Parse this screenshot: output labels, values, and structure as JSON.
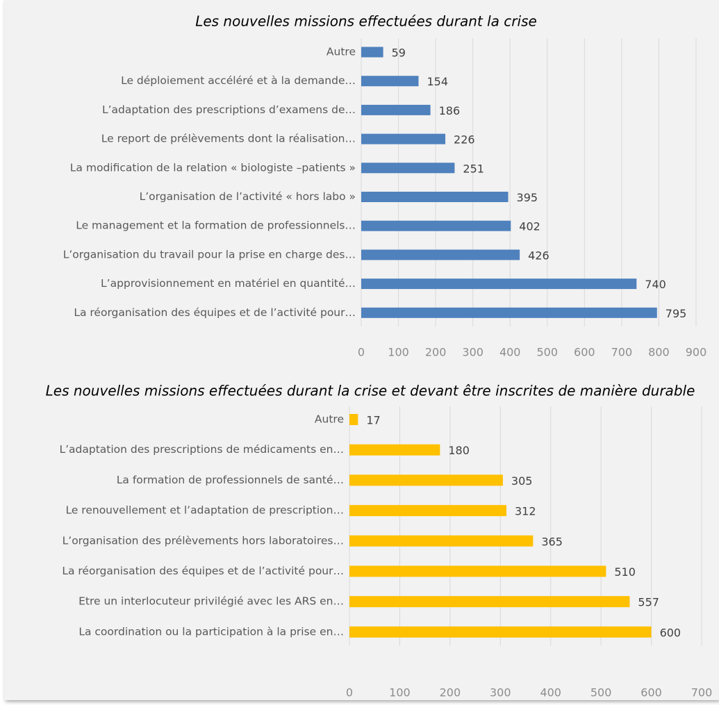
{
  "chart_data": [
    {
      "type": "bar",
      "orientation": "horizontal",
      "title": "Les nouvelles missions effectuées durant la crise",
      "categories": [
        "Autre",
        "Le déploiement accéléré et à la demande…",
        "L’adaptation des prescriptions d’examens de…",
        "Le report de prélèvements dont la réalisation…",
        "La modification de la relation « biologiste –patients »",
        "L’organisation de l’activité « hors labo »",
        "Le management et la formation de professionnels…",
        "L’organisation du travail pour la prise en charge des…",
        "L’approvisionnement en matériel en quantité…",
        "La réorganisation des équipes et de l’activité pour…"
      ],
      "values": [
        59,
        154,
        186,
        226,
        251,
        395,
        402,
        426,
        740,
        795
      ],
      "color": "#4f81bd",
      "xlim": [
        0,
        900
      ],
      "xticks": [
        0,
        100,
        200,
        300,
        400,
        500,
        600,
        700,
        800,
        900
      ],
      "grid": true
    },
    {
      "type": "bar",
      "orientation": "horizontal",
      "title": "Les nouvelles missions effectuées durant la crise et devant être inscrites de manière durable",
      "categories": [
        "Autre",
        "L’adaptation des prescriptions de médicaments en…",
        "La formation de professionnels de santé…",
        "Le renouvellement et l’adaptation de prescription…",
        "L’organisation des prélèvements hors laboratoires…",
        "La réorganisation des équipes et de l’activité pour…",
        "Etre un interlocuteur privilégié avec les ARS en…",
        "La coordination ou la participation à la prise en…"
      ],
      "values": [
        17,
        180,
        305,
        312,
        365,
        510,
        557,
        600
      ],
      "color": "#ffc000",
      "xlim": [
        0,
        700
      ],
      "xticks": [
        0,
        100,
        200,
        300,
        400,
        500,
        600,
        700
      ],
      "grid": true
    }
  ]
}
